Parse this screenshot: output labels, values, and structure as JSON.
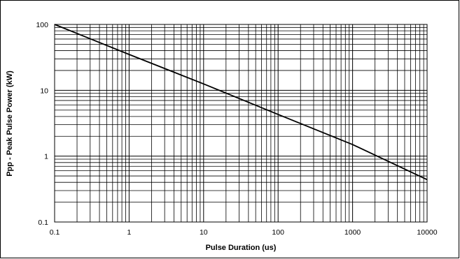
{
  "chart_data": {
    "type": "line",
    "title": "",
    "xlabel": "Pulse Duration (us)",
    "ylabel": "Ppp - Peak Pulse Power (kW)",
    "x_scale": "log",
    "y_scale": "log",
    "xlim": [
      0.1,
      10000
    ],
    "ylim": [
      0.1,
      100
    ],
    "x_ticks": [
      "0.1",
      "1",
      "10",
      "100",
      "1000",
      "10000"
    ],
    "y_ticks": [
      "100",
      "10",
      "1",
      "0.1"
    ],
    "grid": true,
    "legend": "none",
    "series": [
      {
        "x": [
          0.1,
          1,
          10,
          100,
          1000,
          10000
        ],
        "y": [
          100,
          35,
          12.5,
          4.3,
          1.5,
          0.44
        ],
        "color": "#000000"
      }
    ]
  }
}
